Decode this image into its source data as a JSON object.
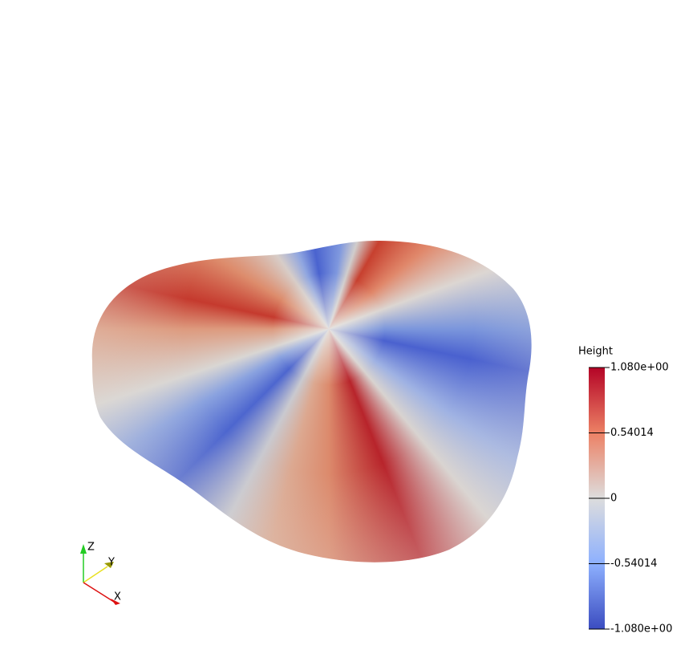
{
  "colorbar": {
    "title": "Height",
    "range": [
      -1.08,
      1.08
    ],
    "ticks": [
      {
        "value": 1.08,
        "label": "1.080e+00"
      },
      {
        "value": 0.54014,
        "label": "0.54014"
      },
      0,
      {
        "value": -0.54014,
        "label": "-0.54014"
      },
      {
        "value": -1.08,
        "label": "-1.080e+00"
      }
    ]
  },
  "axes": {
    "z": "Z",
    "y": "Y",
    "x": "X"
  }
}
